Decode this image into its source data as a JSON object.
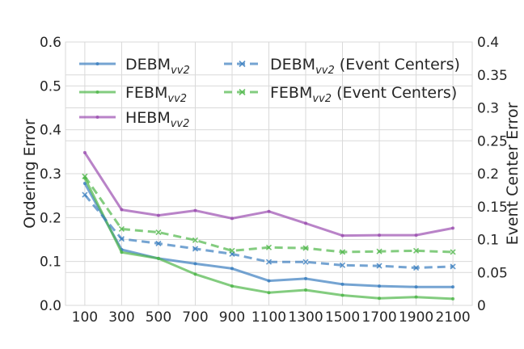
{
  "chart_data": {
    "type": "line",
    "x": [
      100,
      300,
      500,
      700,
      900,
      1100,
      1300,
      1500,
      1700,
      1900,
      2100
    ],
    "x_tick_labels": [
      "100",
      "300",
      "500",
      "700",
      "900",
      "1100",
      "1300",
      "1500",
      "1700",
      "1900",
      "2100"
    ],
    "xlim": [
      -5,
      2205
    ],
    "ylabel_left": "Ordering Error",
    "ylabel_right": "Event Center Error",
    "ylim_left": [
      0,
      0.6
    ],
    "ylim_right": [
      0,
      0.4
    ],
    "left_ticks": [
      "0.0",
      "0.1",
      "0.2",
      "0.3",
      "0.4",
      "0.5",
      "0.6"
    ],
    "right_ticks": [
      "0",
      "0.05",
      "0.1",
      "0.15",
      "0.2",
      "0.25",
      "0.3",
      "0.35",
      "0.4"
    ],
    "grid": true,
    "legend_position": "top",
    "series": [
      {
        "name": "DEBM",
        "subscript": "vv2",
        "suffix": "",
        "axis": "left",
        "style": "solid",
        "marker": "dot",
        "color": "#3a7ebf",
        "values": [
          0.278,
          0.127,
          0.107,
          0.095,
          0.084,
          0.056,
          0.061,
          0.048,
          0.044,
          0.042,
          0.042
        ]
      },
      {
        "name": "FEBM",
        "subscript": "vv2",
        "suffix": "",
        "axis": "left",
        "style": "solid",
        "marker": "dot",
        "color": "#4eb648",
        "values": [
          0.29,
          0.121,
          0.107,
          0.071,
          0.044,
          0.029,
          0.035,
          0.023,
          0.016,
          0.019,
          0.015
        ]
      },
      {
        "name": "HEBM",
        "subscript": "vv2",
        "suffix": "",
        "axis": "left",
        "style": "solid",
        "marker": "dot",
        "color": "#9b4fb0",
        "values": [
          0.348,
          0.218,
          0.205,
          0.216,
          0.198,
          0.214,
          0.187,
          0.159,
          0.16,
          0.16,
          0.176
        ]
      },
      {
        "name": "DEBM",
        "subscript": "vv2",
        "suffix": " (Event Centers)",
        "axis": "right",
        "style": "dashed",
        "marker": "x",
        "color": "#3a7ebf",
        "values": [
          0.168,
          0.101,
          0.094,
          0.086,
          0.078,
          0.066,
          0.066,
          0.061,
          0.06,
          0.057,
          0.059
        ]
      },
      {
        "name": "FEBM",
        "subscript": "vv2",
        "suffix": " (Event Centers)",
        "axis": "right",
        "style": "dashed",
        "marker": "x",
        "color": "#4eb648",
        "values": [
          0.196,
          0.116,
          0.111,
          0.099,
          0.083,
          0.088,
          0.087,
          0.081,
          0.082,
          0.083,
          0.081
        ]
      }
    ]
  }
}
